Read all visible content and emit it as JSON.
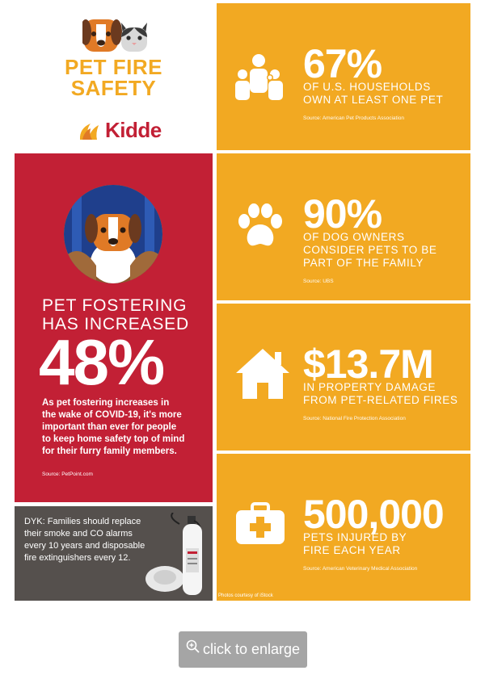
{
  "logo": {
    "title_line1": "PET FIRE",
    "title_line2": "SAFETY",
    "brand": "Kidde"
  },
  "stats": [
    {
      "value": "67%",
      "desc_line1": "OF U.S. HOUSEHOLDS",
      "desc_line2": "OWN AT LEAST ONE PET",
      "desc_line3": "",
      "source": "Source: American Pet Products Association",
      "icon": "family-icon"
    },
    {
      "value": "90%",
      "desc_line1": "OF DOG OWNERS",
      "desc_line2": "CONSIDER PETS TO BE",
      "desc_line3": "PART OF THE FAMILY",
      "source": "Source: UBS",
      "icon": "paw-icon"
    },
    {
      "value": "$13.7M",
      "desc_line1": "IN PROPERTY DAMAGE",
      "desc_line2": "FROM PET-RELATED FIRES",
      "desc_line3": "",
      "source": "Source: National Fire Protection Association",
      "icon": "house-icon"
    },
    {
      "value": "500,000",
      "desc_line1": "PETS INJURED BY",
      "desc_line2": "FIRE EACH YEAR",
      "desc_line3": "",
      "source": "Source: American Veterinary Medical Association",
      "icon": "first-aid-kit-icon"
    }
  ],
  "foster": {
    "headline_line1": "PET FOSTERING",
    "headline_line2": "HAS INCREASED",
    "value": "48%",
    "body_line1": "As pet fostering increases in",
    "body_line2": "the wake of COVID-19, it's more",
    "body_line3": "important than ever for people",
    "body_line4": "to keep home safety top of mind",
    "body_line5": "for their furry family members.",
    "source": "Source: PetPoint.com"
  },
  "dyk": {
    "line1": "DYK: Families should replace",
    "line2": "their smoke and CO alarms",
    "line3": "every 10 years and disposable",
    "line4": "fire extinguishers every 12."
  },
  "credit": "Photos courtesy of iStock",
  "enlarge_label": "click to enlarge",
  "colors": {
    "orange": "#f2a922",
    "red": "#c22035",
    "dark": "#55504d",
    "button": "#a5a5a5"
  }
}
